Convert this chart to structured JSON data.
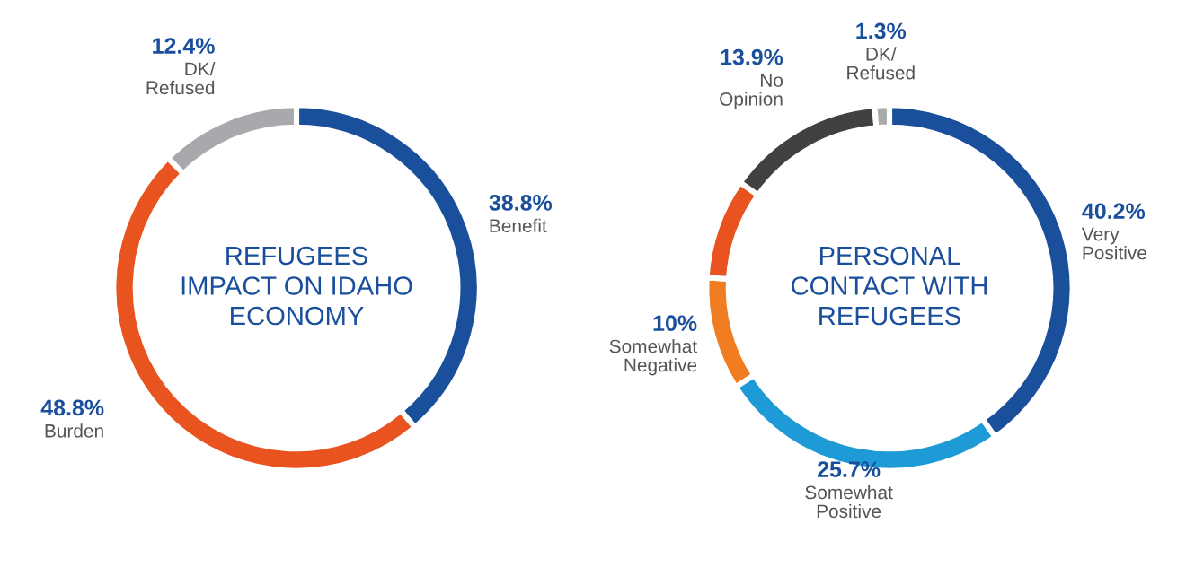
{
  "chart_data": [
    {
      "type": "donut",
      "title": "REFUGEES\nIMPACT ON IDAHO\nECONOMY",
      "categories": [
        "Benefit",
        "Burden",
        "DK/\nRefused"
      ],
      "values": [
        38.8,
        48.8,
        12.4
      ],
      "value_labels": [
        "38.8%",
        "48.8%",
        "12.4%"
      ],
      "colors": [
        "#1a4f9c",
        "#e8531f",
        "#a7a9ac"
      ]
    },
    {
      "type": "donut",
      "title": "PERSONAL\nCONTACT WITH\nREFUGEES",
      "categories": [
        "Very\nPositive",
        "Somewhat\nPositive",
        "Somewhat\nNegative",
        null,
        "No\nOpinion",
        "DK/\nRefused"
      ],
      "values": [
        40.2,
        25.7,
        10,
        8.9,
        13.9,
        1.3
      ],
      "value_labels": [
        "40.2%",
        "25.7%",
        "10%",
        null,
        "13.9%",
        "1.3%"
      ],
      "colors": [
        "#1a4f9c",
        "#1e9ad6",
        "#f07d22",
        "#e8531f",
        "#414042",
        "#a7a9ac"
      ]
    }
  ]
}
